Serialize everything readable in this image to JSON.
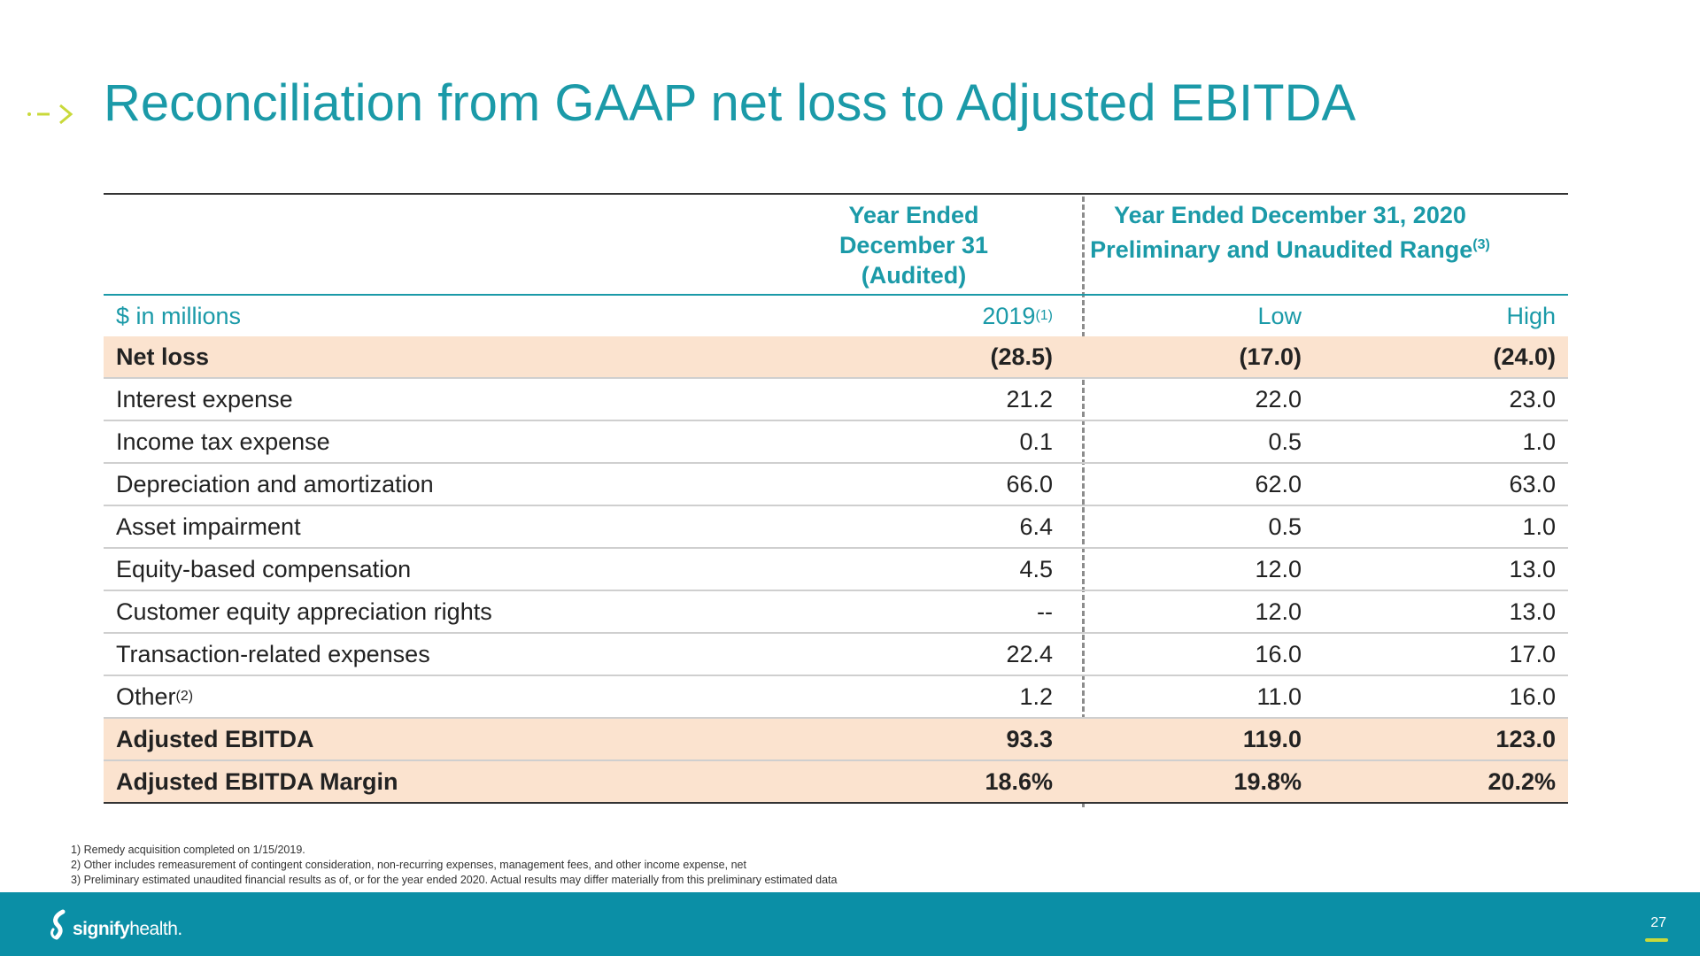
{
  "title": "Reconciliation from GAAP net loss to Adjusted EBITDA",
  "table": {
    "group1": {
      "line1": "Year Ended",
      "line2": "December 31",
      "line3": "(Audited)"
    },
    "group2": {
      "line1": "Year Ended December 31, 2020",
      "line2": "Preliminary and Unaudited Range",
      "sup": "(3)"
    },
    "units": "$ in millions",
    "col1": {
      "label": "2019",
      "sup": "(1)"
    },
    "col2": "Low",
    "col3": "High",
    "rows": [
      {
        "label": "Net loss",
        "v1": "(28.5)",
        "v2": "(17.0)",
        "v3": "(24.0)"
      },
      {
        "label": "Interest expense",
        "v1": "21.2",
        "v2": "22.0",
        "v3": "23.0"
      },
      {
        "label": "Income tax expense",
        "v1": "0.1",
        "v2": "0.5",
        "v3": "1.0"
      },
      {
        "label": "Depreciation and amortization",
        "v1": "66.0",
        "v2": "62.0",
        "v3": "63.0"
      },
      {
        "label": "Asset impairment",
        "v1": "6.4",
        "v2": "0.5",
        "v3": "1.0"
      },
      {
        "label": "Equity-based compensation",
        "v1": "4.5",
        "v2": "12.0",
        "v3": "13.0"
      },
      {
        "label": "Customer equity appreciation rights",
        "v1": "--",
        "v2": "12.0",
        "v3": "13.0"
      },
      {
        "label": "Transaction-related expenses",
        "v1": "22.4",
        "v2": "16.0",
        "v3": "17.0"
      },
      {
        "label": "Other",
        "sup": "(2)",
        "v1": "1.2",
        "v2": "11.0",
        "v3": "16.0"
      },
      {
        "label": "Adjusted EBITDA",
        "v1": "93.3",
        "v2": "119.0",
        "v3": "123.0"
      },
      {
        "label": "Adjusted EBITDA Margin",
        "v1": "18.6%",
        "v2": "19.8%",
        "v3": "20.2%"
      }
    ]
  },
  "footnotes": [
    "1) Remedy acquisition completed on 1/15/2019.",
    "2) Other includes remeasurement of contingent consideration, non-recurring expenses, management fees, and other income expense, net",
    "3) Preliminary estimated unaudited financial results as of, or for the year ended 2020. Actual results may differ materially from this preliminary estimated data"
  ],
  "footer": {
    "logo_bold": "signify",
    "logo_light": "health.",
    "page_number": "27"
  },
  "colors": {
    "accent": "#1b9aa8",
    "highlight": "#fbe3cf",
    "footer": "#0b8fa6",
    "lime": "#c9d93a"
  },
  "icons": {
    "title_marker": "dashed-arrow-icon",
    "logo": "signify-s-icon"
  }
}
